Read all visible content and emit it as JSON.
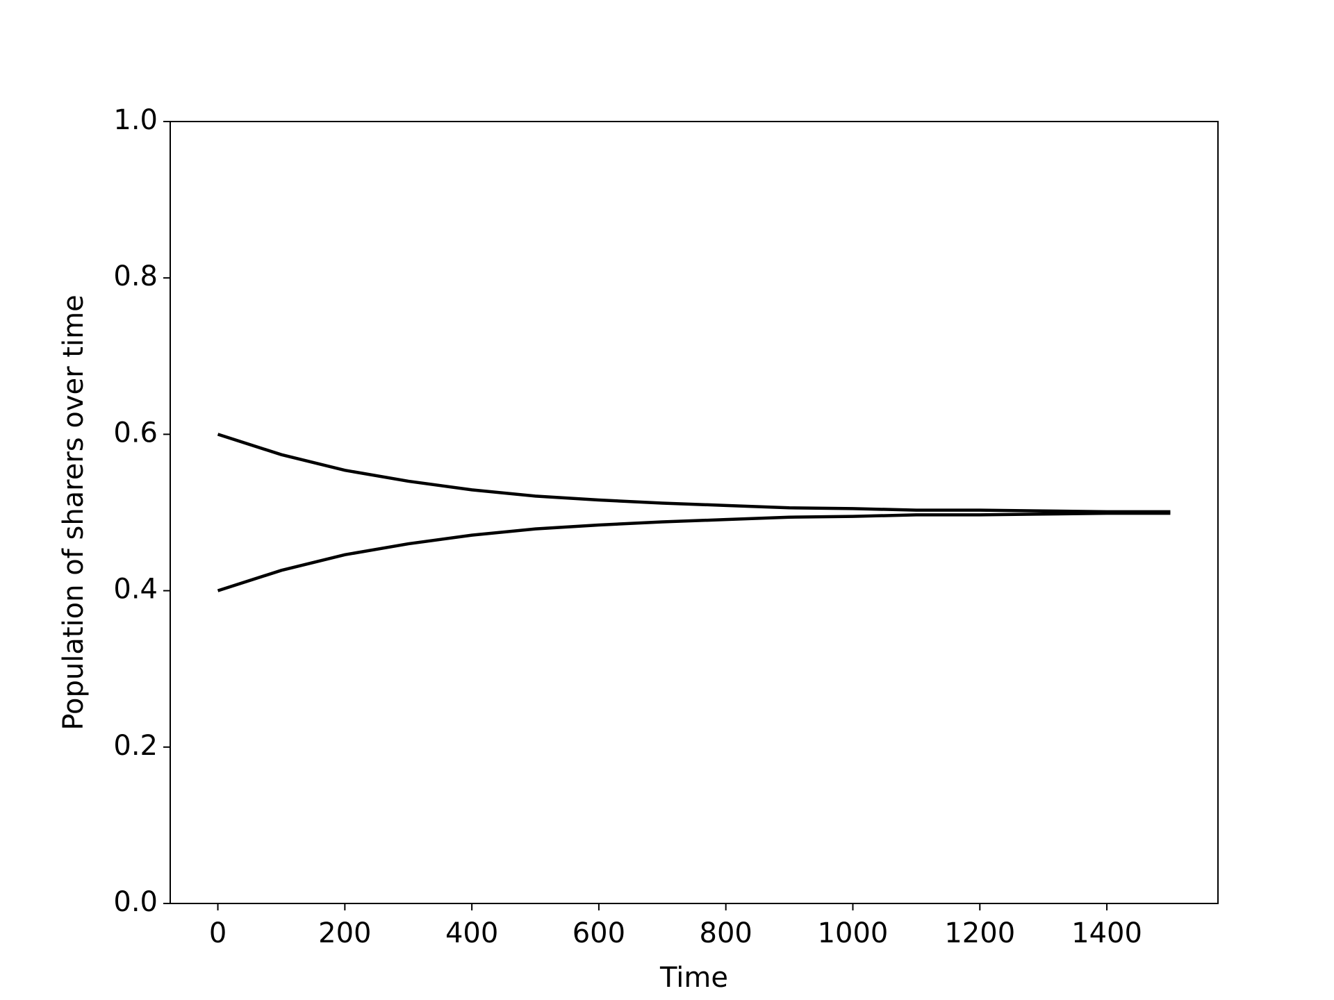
{
  "chart_data": {
    "type": "line",
    "x_label": "Time",
    "y_label": "Population of sharers over time",
    "x": [
      0,
      100,
      200,
      300,
      400,
      500,
      600,
      700,
      800,
      900,
      1000,
      1100,
      1200,
      1300,
      1400,
      1500
    ],
    "series": [
      {
        "color": "#000000",
        "values": [
          0.6,
          0.574,
          0.554,
          0.54,
          0.529,
          0.521,
          0.516,
          0.512,
          0.509,
          0.506,
          0.505,
          0.503,
          0.503,
          0.502,
          0.501,
          0.501
        ]
      },
      {
        "color": "#000000",
        "values": [
          0.4,
          0.426,
          0.446,
          0.46,
          0.471,
          0.479,
          0.484,
          0.488,
          0.491,
          0.494,
          0.495,
          0.497,
          0.497,
          0.498,
          0.499,
          0.499
        ]
      }
    ],
    "xlim": [
      -75,
      1575
    ],
    "xticks": [
      0,
      200,
      400,
      600,
      800,
      1000,
      1200,
      1400
    ],
    "ylim": [
      0,
      1
    ],
    "yticks": [
      {
        "value": 0,
        "label": "0.0"
      },
      0.2,
      0.4,
      0.6,
      0.8,
      {
        "value": 1,
        "label": "1.0"
      }
    ],
    "grid": false
  }
}
